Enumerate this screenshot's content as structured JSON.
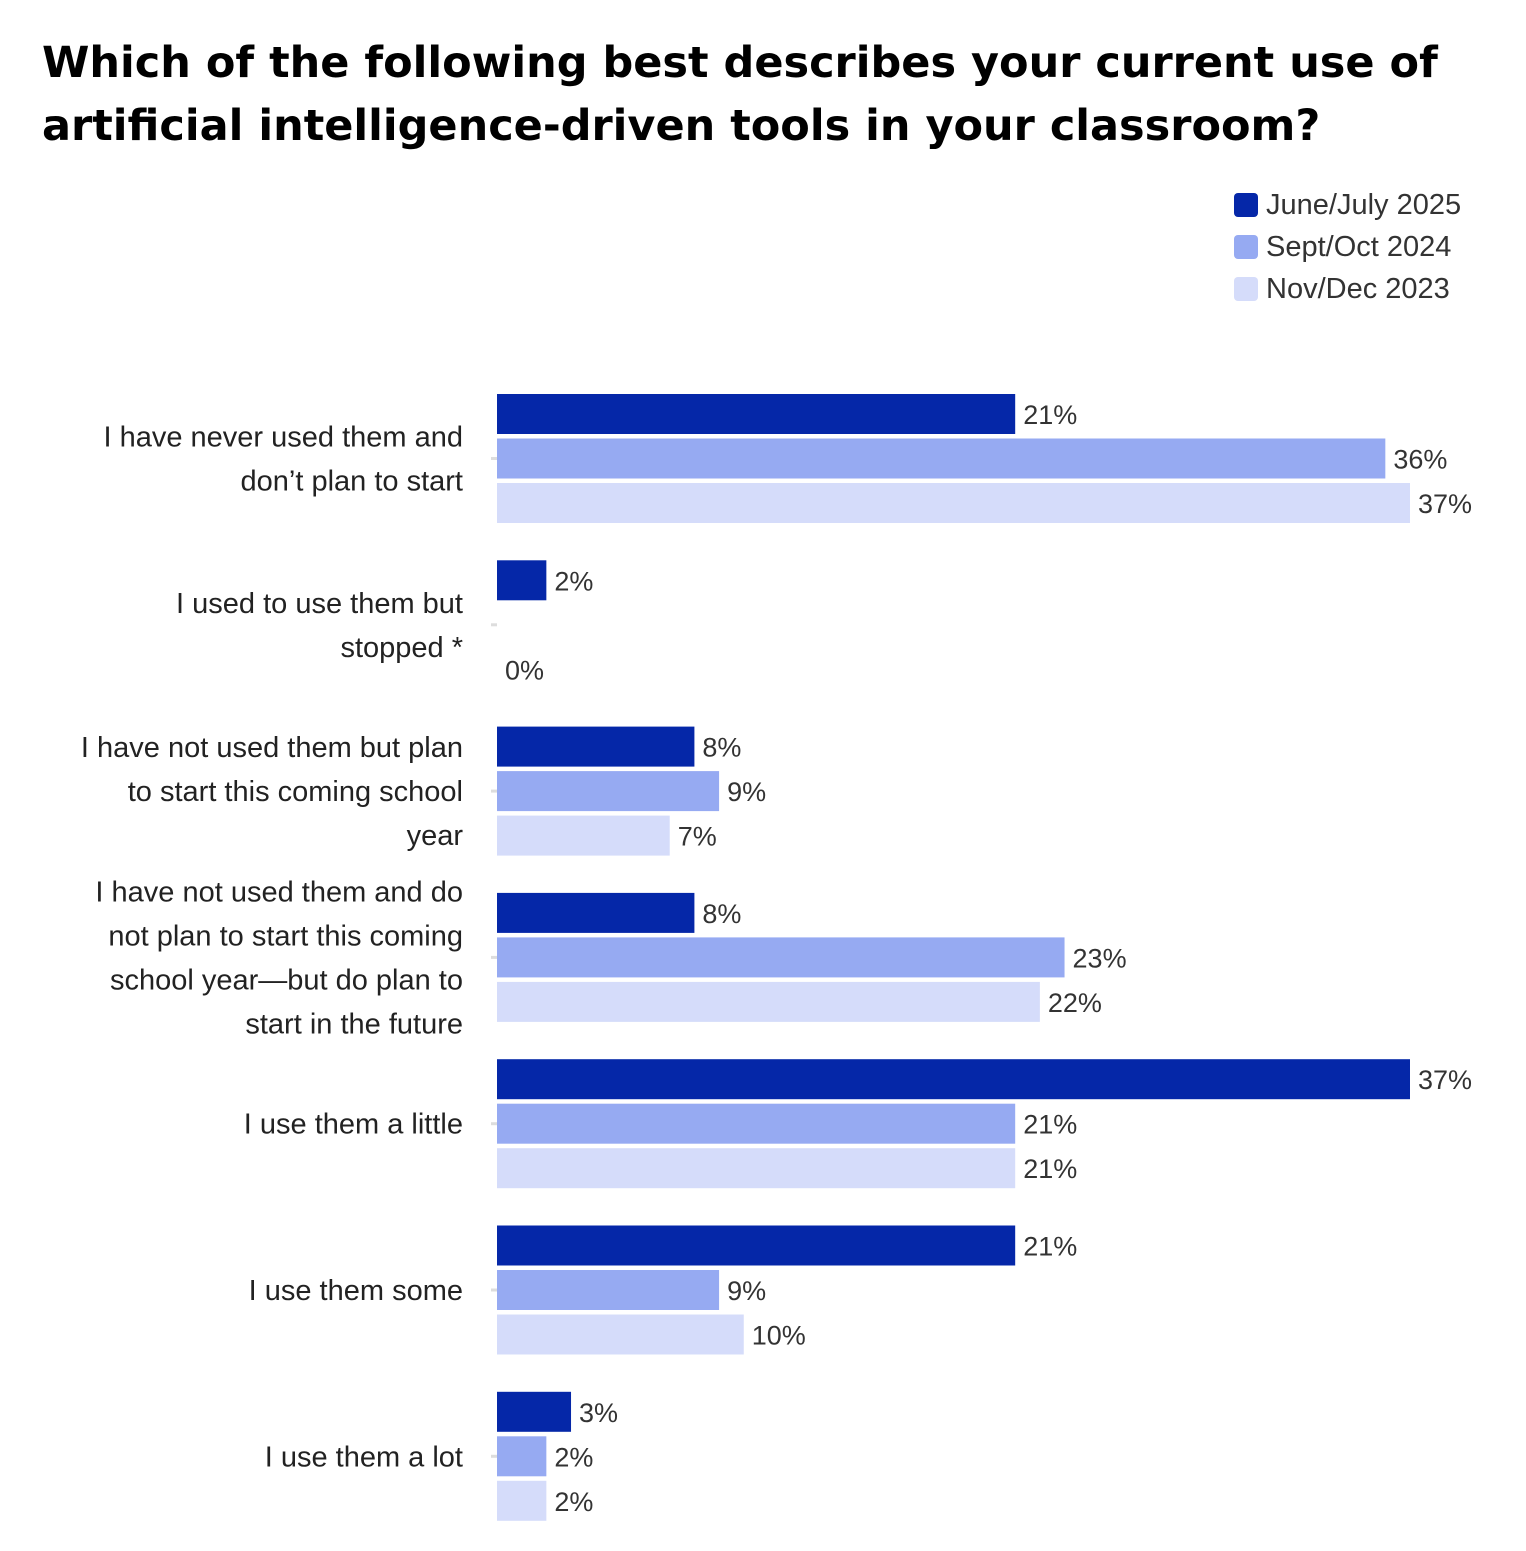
{
  "chart_data": {
    "type": "bar",
    "orientation": "horizontal",
    "title": "Which of the following best describes your current use of artificial intelligence-driven tools in your classroom?",
    "categories": [
      [
        "I have never used them and",
        "don’t plan to start"
      ],
      [
        "I used to use them but",
        "stopped *"
      ],
      [
        "I have not used them but plan",
        "to start this coming school",
        "year"
      ],
      [
        "I have not used them and do",
        "not plan to start this coming",
        "school year—but do plan to",
        "start in the future"
      ],
      [
        "I use them a little"
      ],
      [
        "I use them some"
      ],
      [
        "I use them a lot"
      ]
    ],
    "series": [
      {
        "name": "June/July 2025",
        "color": "#0527a8",
        "values": [
          21,
          2,
          8,
          8,
          37,
          21,
          3
        ]
      },
      {
        "name": "Sept/Oct 2024",
        "color": "#96aaf2",
        "values": [
          36,
          null,
          9,
          23,
          21,
          9,
          2
        ]
      },
      {
        "name": "Nov/Dec 2023",
        "color": "#d5dcfa",
        "values": [
          37,
          0,
          7,
          22,
          21,
          10,
          2
        ]
      }
    ],
    "value_format": "{v}%",
    "xlim": [
      0,
      37
    ],
    "legend_position": "top-right",
    "grid": false
  }
}
